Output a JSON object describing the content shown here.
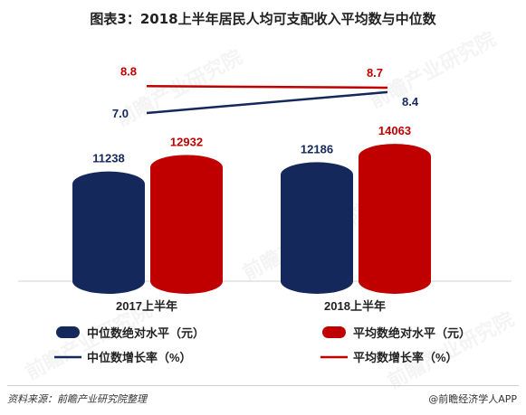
{
  "title": "图表3：2018上半年居民人均可支配收入平均数与中位数",
  "source": "资料来源：前瞻产业研究院整理",
  "credit": "@前瞻经济学人APP",
  "watermark": "前瞻产业研究院",
  "colors": {
    "median": "#14285c",
    "mean": "#c00000",
    "title_text": "#222222",
    "gray_text": "#333333"
  },
  "chart_data": {
    "type": "bar",
    "categories": [
      "2017上半年",
      "2018上半年"
    ],
    "series": [
      {
        "name": "中位数绝对水平（元）",
        "kind": "bar",
        "values": [
          11238,
          12186
        ],
        "labels": [
          "11238",
          "12186"
        ],
        "color": "#14285c"
      },
      {
        "name": "平均数绝对水平（元）",
        "kind": "bar",
        "values": [
          12932,
          14063
        ],
        "labels": [
          "12932",
          "14063"
        ],
        "color": "#c00000"
      },
      {
        "name": "中位数增长率（%）",
        "kind": "line",
        "values": [
          7.0,
          8.4
        ],
        "labels": [
          "7.0",
          "8.4"
        ],
        "color": "#14285c"
      },
      {
        "name": "平均数增长率（%）",
        "kind": "line",
        "values": [
          8.8,
          8.7
        ],
        "labels": [
          "8.8",
          "8.7"
        ],
        "color": "#c00000"
      }
    ],
    "legend": "bottom",
    "grid": false
  }
}
